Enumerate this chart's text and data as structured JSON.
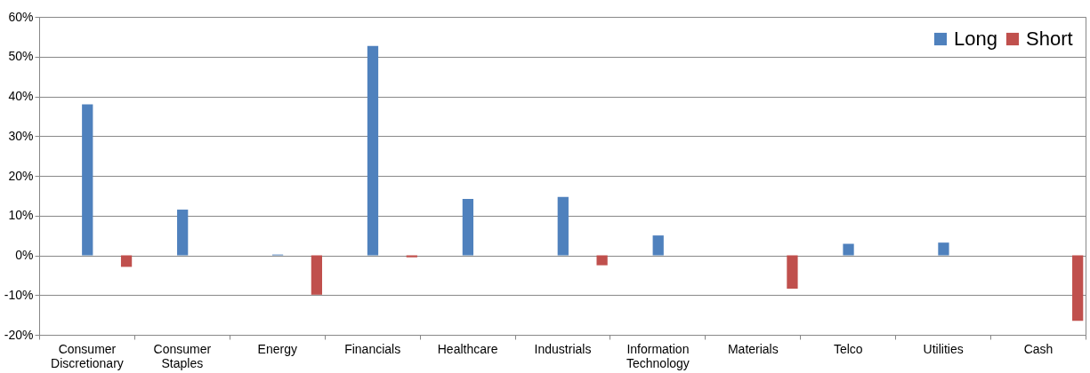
{
  "chart_data": {
    "type": "bar",
    "categories": [
      "Consumer Discretionary",
      "Consumer Staples",
      "Energy",
      "Financials",
      "Healthcare",
      "Industrials",
      "Information Technology",
      "Materials",
      "Telco",
      "Utilities",
      "Cash"
    ],
    "series": [
      {
        "name": "Long",
        "color": "#4f81bd",
        "values": [
          38.0,
          11.5,
          0.2,
          52.7,
          14.2,
          14.7,
          5.0,
          0,
          2.9,
          3.2,
          0
        ]
      },
      {
        "name": "Short",
        "color": "#c0504d",
        "values": [
          -2.9,
          0,
          -9.9,
          -0.5,
          0,
          -2.5,
          0,
          -8.4,
          0,
          0,
          -16.5
        ]
      }
    ],
    "ylim": [
      -20,
      60
    ],
    "yticks": [
      {
        "value": -20,
        "label": "-20%"
      },
      {
        "value": -10,
        "label": "-10%"
      },
      {
        "value": 0,
        "label": "0%"
      },
      {
        "value": 10,
        "label": "10%"
      },
      {
        "value": 20,
        "label": "20%"
      },
      {
        "value": 30,
        "label": "30%"
      },
      {
        "value": 40,
        "label": "40%"
      },
      {
        "value": 50,
        "label": "50%"
      },
      {
        "value": 60,
        "label": "60%"
      }
    ],
    "grid": "y",
    "legend": "top right"
  }
}
